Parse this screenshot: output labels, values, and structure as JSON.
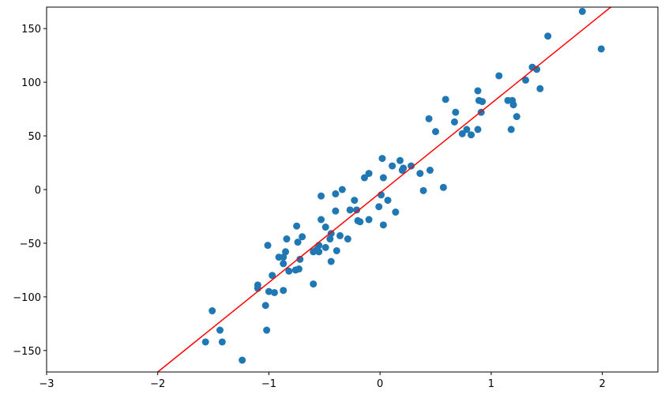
{
  "chart_data": {
    "type": "scatter",
    "x": [
      1.82,
      1.99,
      1.51,
      1.07,
      1.37,
      1.41,
      1.31,
      1.44,
      1.15,
      1.19,
      1.2,
      1.23,
      1.18,
      0.88,
      0.89,
      0.92,
      0.91,
      0.59,
      0.68,
      0.67,
      0.44,
      0.5,
      0.74,
      0.78,
      0.82,
      0.88,
      0.45,
      0.36,
      0.39,
      0.57,
      0.28,
      0.18,
      0.21,
      0.2,
      0.11,
      0.02,
      0.03,
      0.01,
      0.07,
      -0.01,
      0.14,
      0.03,
      -0.1,
      -0.14,
      -0.23,
      -0.27,
      -0.21,
      -0.2,
      -0.18,
      -0.1,
      -0.34,
      -0.4,
      -0.4,
      -0.53,
      -0.53,
      -0.49,
      -0.44,
      -0.45,
      -0.36,
      -0.29,
      -0.39,
      -0.49,
      -0.44,
      -0.55,
      -0.57,
      -0.6,
      -0.55,
      -0.6,
      -0.75,
      -0.7,
      -0.74,
      -0.84,
      -0.85,
      -0.87,
      -0.91,
      -0.87,
      -0.72,
      -0.82,
      -0.76,
      -0.73,
      -1.01,
      -0.97,
      -1.1,
      -1.1,
      -1.0,
      -0.95,
      -0.87,
      -1.03,
      -1.02,
      -1.51,
      -1.44,
      -1.42,
      -1.57,
      -1.24
    ],
    "y": [
      166,
      131,
      143,
      106,
      114,
      112,
      102,
      94,
      83,
      83,
      79,
      68,
      56,
      92,
      83,
      82,
      72,
      84,
      72,
      63,
      66,
      54,
      52,
      56,
      51,
      56,
      18,
      15,
      -1,
      2,
      22,
      27,
      20,
      18,
      22,
      29,
      11,
      -5,
      -10,
      -16,
      -21,
      -33,
      15,
      11,
      -10,
      -19,
      -19,
      -29,
      -30,
      -28,
      0,
      -4,
      -20,
      -6,
      -28,
      -35,
      -41,
      -46,
      -43,
      -46,
      -57,
      -54,
      -67,
      -52,
      -56,
      -58,
      -58,
      -88,
      -34,
      -44,
      -49,
      -46,
      -58,
      -63,
      -63,
      -69,
      -65,
      -76,
      -75,
      -74,
      -52,
      -80,
      -89,
      -92,
      -95,
      -96,
      -94,
      -108,
      -131,
      -113,
      -131,
      -142,
      -142,
      -159
    ],
    "color": "#1f77b4",
    "fit_line": {
      "x": [
        -2.0,
        2.1
      ],
      "y": [
        -170,
        172
      ],
      "color": "#ff0000"
    },
    "xlim": [
      -3,
      2.5
    ],
    "ylim": [
      -170,
      170
    ],
    "xticks": [
      {
        "value": -3,
        "label": "−3"
      },
      {
        "value": -2,
        "label": "−2"
      },
      {
        "value": -1,
        "label": "−1"
      },
      0,
      1,
      2
    ],
    "yticks": [
      {
        "value": -150,
        "label": "−150"
      },
      {
        "value": -100,
        "label": "−100"
      },
      {
        "value": -50,
        "label": "−50"
      },
      0,
      50,
      100,
      150
    ]
  }
}
